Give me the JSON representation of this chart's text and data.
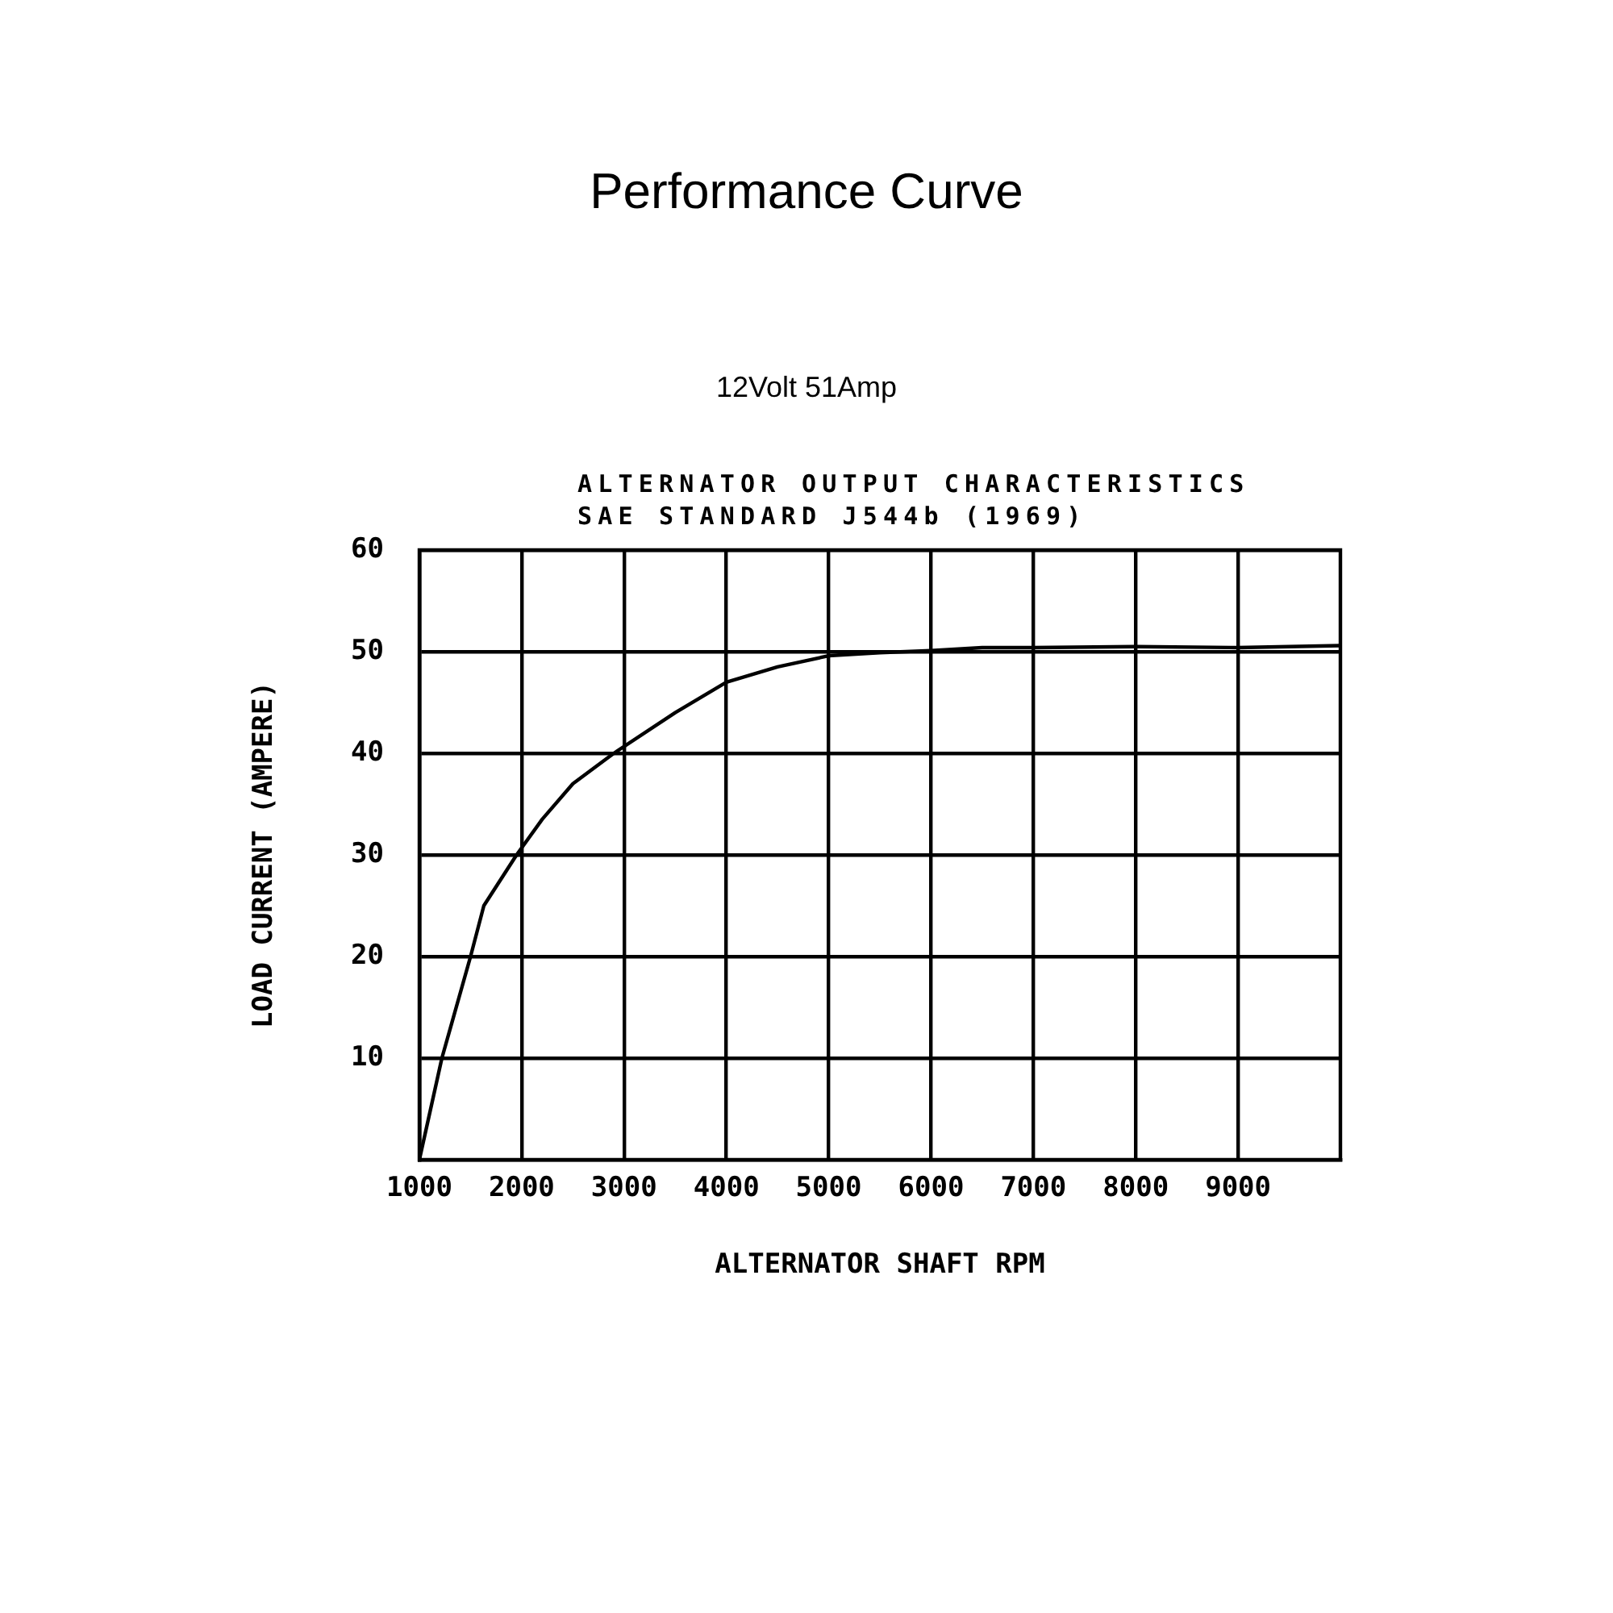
{
  "chart_data": {
    "type": "line",
    "title": "Performance Curve",
    "subtitle": "12Volt 51Amp",
    "annotations": [
      "ALTERNATOR OUTPUT CHARACTERISTICS",
      "SAE STANDARD J544b (1969)"
    ],
    "xlabel": "ALTERNATOR SHAFT RPM",
    "ylabel": "LOAD CURRENT (AMPERE)",
    "x": [
      1000,
      1220,
      1500,
      1630,
      1950,
      2200,
      2500,
      2900,
      3500,
      4000,
      4500,
      5000,
      5500,
      6000,
      6500,
      7000,
      8000,
      9000,
      10000
    ],
    "series": [
      {
        "color": "#000000",
        "values": [
          0,
          10,
          20,
          25,
          30,
          33.5,
          37,
          40,
          44,
          47,
          48.5,
          49.6,
          49.9,
          50.1,
          50.4,
          50.4,
          50.5,
          50.4,
          50.6
        ]
      }
    ],
    "xlim": [
      1000,
      10000
    ],
    "xticks": [
      1000,
      2000,
      3000,
      4000,
      5000,
      6000,
      7000,
      8000,
      9000
    ],
    "ylim": [
      0,
      60
    ],
    "yticks": [
      10,
      20,
      30,
      40,
      50,
      60
    ],
    "grid": true,
    "marker": "none",
    "line_style": "solid"
  }
}
